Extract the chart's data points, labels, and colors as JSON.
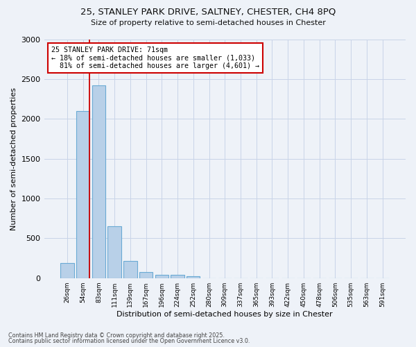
{
  "title1": "25, STANLEY PARK DRIVE, SALTNEY, CHESTER, CH4 8PQ",
  "title2": "Size of property relative to semi-detached houses in Chester",
  "xlabel": "Distribution of semi-detached houses by size in Chester",
  "ylabel": "Number of semi-detached properties",
  "categories": [
    "26sqm",
    "54sqm",
    "83sqm",
    "111sqm",
    "139sqm",
    "167sqm",
    "196sqm",
    "224sqm",
    "252sqm",
    "280sqm",
    "309sqm",
    "337sqm",
    "365sqm",
    "393sqm",
    "422sqm",
    "450sqm",
    "478sqm",
    "506sqm",
    "535sqm",
    "563sqm",
    "591sqm"
  ],
  "values": [
    185,
    2100,
    2420,
    650,
    215,
    80,
    45,
    40,
    20,
    0,
    0,
    0,
    0,
    0,
    0,
    0,
    0,
    0,
    0,
    0,
    0
  ],
  "bar_color": "#b8d0e8",
  "bar_edge_color": "#6aaad4",
  "property_sqm": "71sqm",
  "pct_smaller": 18,
  "n_smaller": "1,033",
  "pct_larger": 81,
  "n_larger": "4,601",
  "annotation_box_color": "#cc0000",
  "annotation_fill": "#ffffff",
  "annotation_text_color": "#000000",
  "line_color": "#cc0000",
  "grid_color": "#c8d4e8",
  "background_color": "#eef2f8",
  "footer1": "Contains HM Land Registry data © Crown copyright and database right 2025.",
  "footer2": "Contains public sector information licensed under the Open Government Licence v3.0.",
  "ylim": [
    0,
    3000
  ],
  "yticks": [
    0,
    500,
    1000,
    1500,
    2000,
    2500,
    3000
  ]
}
